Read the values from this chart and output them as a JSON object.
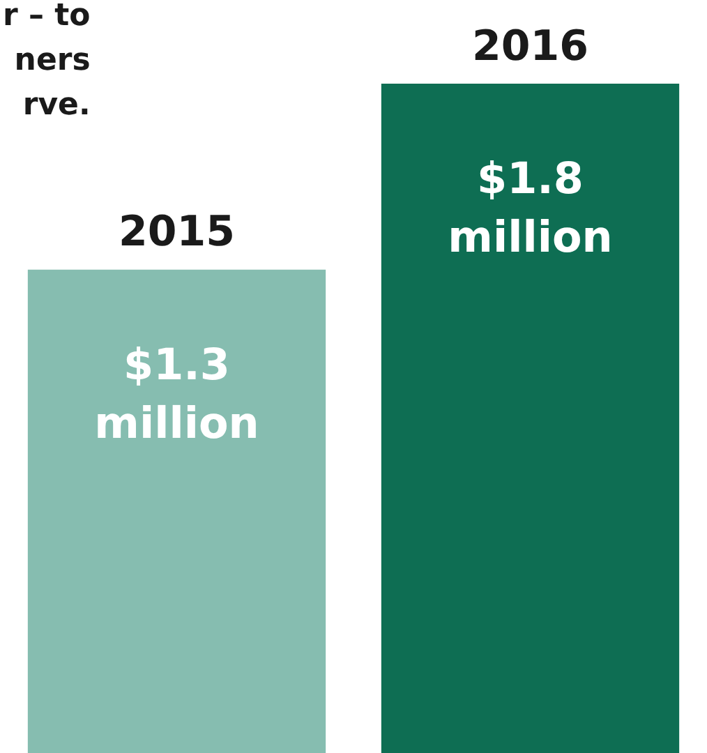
{
  "chart_data": {
    "type": "bar",
    "categories": [
      "2015",
      "2016"
    ],
    "values": [
      1300000,
      1800000
    ],
    "colors": [
      "#86bdb0",
      "#0e6e53"
    ],
    "value_labels": [
      "$1.3\nmillion",
      "$1.8\nmillion"
    ],
    "annotations": [
      "r – to\nners\nrve."
    ]
  }
}
